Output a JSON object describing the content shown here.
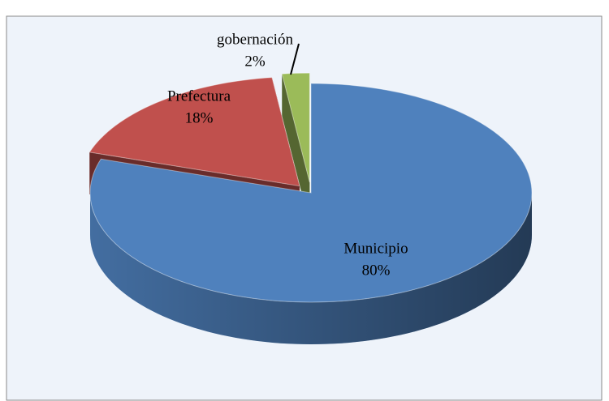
{
  "chart_data": {
    "type": "pie",
    "categories": [
      "Municipio",
      "Prefectura",
      "gobernación"
    ],
    "values": [
      80,
      18,
      2
    ],
    "value_labels": [
      "80%",
      "18%",
      "2%"
    ],
    "colors": [
      "#4f81bd",
      "#c0504d",
      "#9bbb59"
    ]
  }
}
